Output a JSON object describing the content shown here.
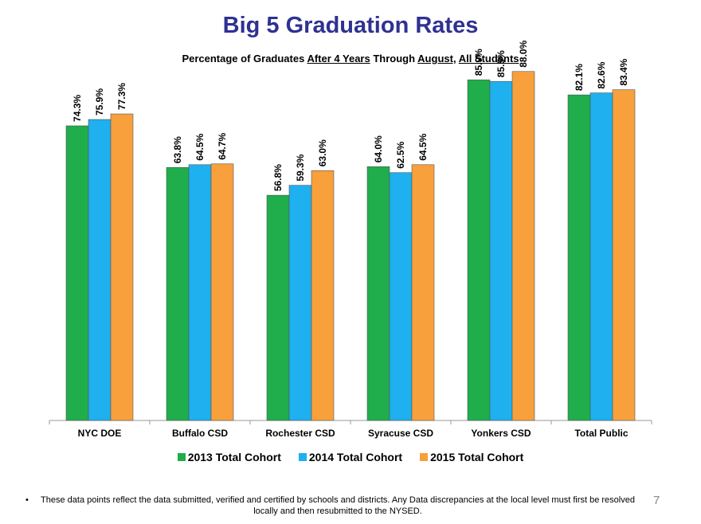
{
  "chart_data": {
    "type": "bar",
    "title": "Big 5 Graduation Rates",
    "subtitle_parts": [
      {
        "text": "Percentage of Graduates ",
        "underline": false
      },
      {
        "text": "After 4 Years",
        "underline": true
      },
      {
        "text": " Through ",
        "underline": false
      },
      {
        "text": "August,",
        "underline": true
      },
      {
        "text": " ",
        "underline": false
      },
      {
        "text": "All Students",
        "underline": true
      }
    ],
    "categories": [
      "NYC DOE",
      "Buffalo CSD",
      "Rochester CSD",
      "Syracuse CSD",
      "Yonkers CSD",
      "Total Public"
    ],
    "series": [
      {
        "name": "2013 Total Cohort",
        "color": "#1fae4b",
        "values": [
          74.3,
          63.8,
          56.8,
          64.0,
          85.9,
          82.1
        ],
        "labels": [
          "74.3%",
          "63.8%",
          "56.8%",
          "64.0%",
          "85.9%",
          "82.1%"
        ]
      },
      {
        "name": "2014 Total Cohort",
        "color": "#1eb0ef",
        "values": [
          75.9,
          64.5,
          59.3,
          62.5,
          85.5,
          82.6
        ],
        "labels": [
          "75.9%",
          "64.5%",
          "59.3%",
          "62.5%",
          "85.5%",
          "82.6%"
        ]
      },
      {
        "name": "2015 Total Cohort",
        "color": "#f7a03c",
        "values": [
          77.3,
          64.7,
          63.0,
          64.5,
          88.0,
          83.4
        ],
        "labels": [
          "77.3%",
          "64.7%",
          "63.0%",
          "64.5%",
          "88.0%",
          "83.4%"
        ]
      }
    ],
    "ylim": [
      0,
      100
    ],
    "grid": false,
    "legend": "bottom"
  },
  "footnote": {
    "bullet": "•",
    "text": "These data points reflect the data submitted, verified and certified by schools and districts.  Any Data discrepancies at the local level must first be resolved locally and then resubmitted to the NYSED."
  },
  "page_number": "7"
}
